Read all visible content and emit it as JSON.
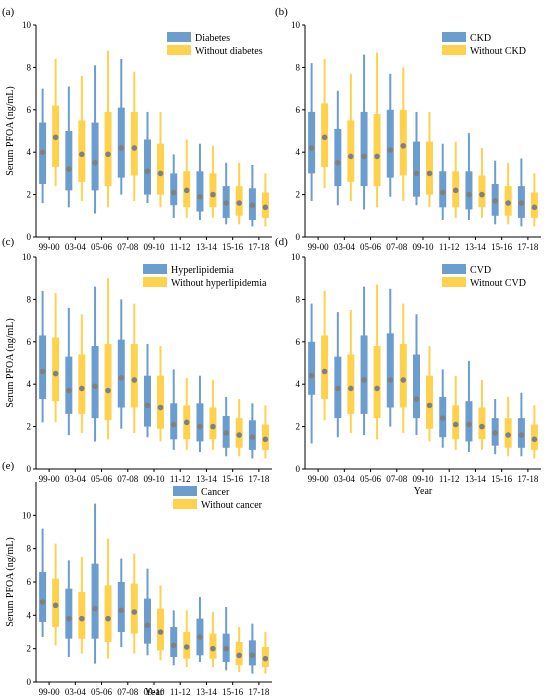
{
  "colors": {
    "group_a": "#6B9ECF",
    "group_b": "#FFD24D",
    "median": "#808080",
    "axis": "#000000"
  },
  "chart_data": [
    {
      "type": "box",
      "panel_label": "(a)",
      "ylabel": "Serum PFOA (ng/mL)",
      "xlabel": "",
      "ylim": [
        0,
        10
      ],
      "yticks": [
        0,
        2,
        4,
        6,
        8,
        10
      ],
      "categories": [
        "99-00",
        "03-04",
        "05-06",
        "07-08",
        "09-10",
        "11-12",
        "13-14",
        "15-16",
        "17-18"
      ],
      "legend_position": "top-right",
      "series": [
        {
          "name": "Diabetes",
          "color": "group_a",
          "boxes": [
            {
              "whislo": 1.6,
              "q1": 2.5,
              "med": 4.0,
              "q3": 5.4,
              "whishi": 7.0
            },
            {
              "whislo": 1.4,
              "q1": 2.2,
              "med": 3.2,
              "q3": 5.0,
              "whishi": 7.1
            },
            {
              "whislo": 1.1,
              "q1": 2.2,
              "med": 3.5,
              "q3": 5.4,
              "whishi": 8.1
            },
            {
              "whislo": 2.0,
              "q1": 2.8,
              "med": 4.2,
              "q3": 6.1,
              "whishi": 8.4
            },
            {
              "whislo": 1.6,
              "q1": 2.0,
              "med": 3.1,
              "q3": 4.6,
              "whishi": 5.9
            },
            {
              "whislo": 0.9,
              "q1": 1.5,
              "med": 2.1,
              "q3": 3.0,
              "whishi": 3.9
            },
            {
              "whislo": 0.8,
              "q1": 1.2,
              "med": 1.9,
              "q3": 3.1,
              "whishi": 4.4
            },
            {
              "whislo": 0.6,
              "q1": 0.9,
              "med": 1.6,
              "q3": 2.4,
              "whishi": 3.5
            },
            {
              "whislo": 0.5,
              "q1": 0.8,
              "med": 1.5,
              "q3": 2.3,
              "whishi": 3.4
            }
          ]
        },
        {
          "name": "Without diabetes",
          "color": "group_b",
          "boxes": [
            {
              "whislo": 2.4,
              "q1": 3.3,
              "med": 4.7,
              "q3": 6.2,
              "whishi": 8.4
            },
            {
              "whislo": 1.7,
              "q1": 2.6,
              "med": 3.9,
              "q3": 5.5,
              "whishi": 7.6
            },
            {
              "whislo": 1.4,
              "q1": 2.4,
              "med": 3.9,
              "q3": 5.9,
              "whishi": 8.8
            },
            {
              "whislo": 1.7,
              "q1": 2.9,
              "med": 4.2,
              "q3": 5.9,
              "whishi": 7.8
            },
            {
              "whislo": 1.4,
              "q1": 2.0,
              "med": 3.0,
              "q3": 4.4,
              "whishi": 5.9
            },
            {
              "whislo": 0.9,
              "q1": 1.4,
              "med": 2.2,
              "q3": 3.1,
              "whishi": 4.6
            },
            {
              "whislo": 0.9,
              "q1": 1.4,
              "med": 2.0,
              "q3": 3.0,
              "whishi": 4.3
            },
            {
              "whislo": 0.6,
              "q1": 1.0,
              "med": 1.6,
              "q3": 2.4,
              "whishi": 3.5
            },
            {
              "whislo": 0.5,
              "q1": 0.9,
              "med": 1.4,
              "q3": 2.1,
              "whishi": 3.0
            }
          ]
        }
      ]
    },
    {
      "type": "box",
      "panel_label": "(b)",
      "ylabel": "",
      "xlabel": "",
      "ylim": [
        0,
        10
      ],
      "yticks": [
        0,
        2,
        4,
        6,
        8,
        10
      ],
      "categories": [
        "99-00",
        "03-04",
        "05-06",
        "07-08",
        "09-10",
        "11-12",
        "13-14",
        "15-16",
        "17-18"
      ],
      "legend_position": "top-right",
      "series": [
        {
          "name": "CKD",
          "color": "group_a",
          "boxes": [
            {
              "whislo": 1.7,
              "q1": 3.0,
              "med": 4.2,
              "q3": 5.9,
              "whishi": 8.2
            },
            {
              "whislo": 1.5,
              "q1": 2.4,
              "med": 3.5,
              "q3": 5.1,
              "whishi": 6.9
            },
            {
              "whislo": 1.3,
              "q1": 2.4,
              "med": 3.8,
              "q3": 5.9,
              "whishi": 8.6
            },
            {
              "whislo": 1.9,
              "q1": 2.8,
              "med": 4.1,
              "q3": 6.0,
              "whishi": 7.7
            },
            {
              "whislo": 1.5,
              "q1": 1.9,
              "med": 3.0,
              "q3": 4.5,
              "whishi": 5.9
            },
            {
              "whislo": 0.8,
              "q1": 1.4,
              "med": 2.1,
              "q3": 3.1,
              "whishi": 4.4
            },
            {
              "whislo": 0.8,
              "q1": 1.3,
              "med": 2.0,
              "q3": 3.1,
              "whishi": 4.9
            },
            {
              "whislo": 0.6,
              "q1": 1.0,
              "med": 1.7,
              "q3": 2.5,
              "whishi": 3.6
            },
            {
              "whislo": 0.5,
              "q1": 0.9,
              "med": 1.6,
              "q3": 2.4,
              "whishi": 3.7
            }
          ]
        },
        {
          "name": "Without CKD",
          "color": "group_b",
          "boxes": [
            {
              "whislo": 2.3,
              "q1": 3.3,
              "med": 4.7,
              "q3": 6.3,
              "whishi": 8.4
            },
            {
              "whislo": 1.7,
              "q1": 2.6,
              "med": 3.8,
              "q3": 5.5,
              "whishi": 7.7
            },
            {
              "whislo": 1.4,
              "q1": 2.4,
              "med": 3.8,
              "q3": 5.8,
              "whishi": 8.7
            },
            {
              "whislo": 1.7,
              "q1": 2.9,
              "med": 4.3,
              "q3": 6.0,
              "whishi": 8.0
            },
            {
              "whislo": 1.4,
              "q1": 2.0,
              "med": 3.0,
              "q3": 4.5,
              "whishi": 5.9
            },
            {
              "whislo": 0.9,
              "q1": 1.4,
              "med": 2.2,
              "q3": 3.1,
              "whishi": 4.5
            },
            {
              "whislo": 0.9,
              "q1": 1.4,
              "med": 2.0,
              "q3": 2.9,
              "whishi": 4.2
            },
            {
              "whislo": 0.6,
              "q1": 1.0,
              "med": 1.6,
              "q3": 2.4,
              "whishi": 3.5
            },
            {
              "whislo": 0.5,
              "q1": 0.9,
              "med": 1.4,
              "q3": 2.1,
              "whishi": 3.0
            }
          ]
        }
      ]
    },
    {
      "type": "box",
      "panel_label": "(c)",
      "ylabel": "Serum PFOA (ng/mL)",
      "xlabel": "",
      "ylim": [
        0,
        10
      ],
      "yticks": [
        0,
        2,
        4,
        6,
        8,
        10
      ],
      "categories": [
        "99-00",
        "03-04",
        "05-06",
        "07-08",
        "09-10",
        "11-12",
        "13-14",
        "15-16",
        "17-18"
      ],
      "legend_position": "top-right",
      "series": [
        {
          "name": "Hyperlipidemia",
          "color": "group_a",
          "boxes": [
            {
              "whislo": 2.2,
              "q1": 3.3,
              "med": 4.6,
              "q3": 6.3,
              "whishi": 8.4
            },
            {
              "whislo": 1.6,
              "q1": 2.6,
              "med": 3.7,
              "q3": 5.3,
              "whishi": 7.6
            },
            {
              "whislo": 1.3,
              "q1": 2.4,
              "med": 3.9,
              "q3": 5.8,
              "whishi": 8.6
            },
            {
              "whislo": 1.9,
              "q1": 2.9,
              "med": 4.3,
              "q3": 6.1,
              "whishi": 8.0
            },
            {
              "whislo": 1.5,
              "q1": 2.0,
              "med": 3.0,
              "q3": 4.4,
              "whishi": 5.9
            },
            {
              "whislo": 0.9,
              "q1": 1.4,
              "med": 2.1,
              "q3": 3.1,
              "whishi": 4.7
            },
            {
              "whislo": 0.8,
              "q1": 1.3,
              "med": 2.0,
              "q3": 3.1,
              "whishi": 4.4
            },
            {
              "whislo": 0.6,
              "q1": 1.0,
              "med": 1.7,
              "q3": 2.5,
              "whishi": 3.4
            },
            {
              "whislo": 0.5,
              "q1": 0.9,
              "med": 1.5,
              "q3": 2.3,
              "whishi": 3.1
            }
          ]
        },
        {
          "name": "Without hyperlipidemia",
          "color": "group_b",
          "boxes": [
            {
              "whislo": 2.2,
              "q1": 3.2,
              "med": 4.5,
              "q3": 6.2,
              "whishi": 8.3
            },
            {
              "whislo": 1.7,
              "q1": 2.6,
              "med": 3.8,
              "q3": 5.4,
              "whishi": 7.3
            },
            {
              "whislo": 1.4,
              "q1": 2.3,
              "med": 3.7,
              "q3": 5.9,
              "whishi": 9.0
            },
            {
              "whislo": 1.7,
              "q1": 2.9,
              "med": 4.2,
              "q3": 5.9,
              "whishi": 7.8
            },
            {
              "whislo": 1.3,
              "q1": 1.9,
              "med": 2.9,
              "q3": 4.4,
              "whishi": 5.8
            },
            {
              "whislo": 0.9,
              "q1": 1.4,
              "med": 2.2,
              "q3": 3.0,
              "whishi": 4.3
            },
            {
              "whislo": 0.9,
              "q1": 1.4,
              "med": 2.0,
              "q3": 2.9,
              "whishi": 4.2
            },
            {
              "whislo": 0.6,
              "q1": 1.0,
              "med": 1.6,
              "q3": 2.4,
              "whishi": 3.3
            },
            {
              "whislo": 0.5,
              "q1": 0.9,
              "med": 1.4,
              "q3": 2.1,
              "whishi": 3.0
            }
          ]
        }
      ]
    },
    {
      "type": "box",
      "panel_label": "(d)",
      "ylabel": "",
      "xlabel": "Year",
      "ylim": [
        0,
        10
      ],
      "yticks": [
        0,
        2,
        4,
        6,
        8,
        10
      ],
      "categories": [
        "99-00",
        "03-04",
        "05-06",
        "07-08",
        "09-10",
        "11-12",
        "13-14",
        "15-16",
        "17-18"
      ],
      "legend_position": "top-right",
      "series": [
        {
          "name": "CVD",
          "color": "group_a",
          "boxes": [
            {
              "whislo": 1.2,
              "q1": 3.5,
              "med": 4.4,
              "q3": 6.0,
              "whishi": 7.8
            },
            {
              "whislo": 1.5,
              "q1": 2.4,
              "med": 3.8,
              "q3": 5.3,
              "whishi": 7.4
            },
            {
              "whislo": 1.6,
              "q1": 2.6,
              "med": 4.2,
              "q3": 6.3,
              "whishi": 8.6
            },
            {
              "whislo": 2.0,
              "q1": 2.9,
              "med": 4.2,
              "q3": 6.4,
              "whishi": 8.5
            },
            {
              "whislo": 1.6,
              "q1": 2.4,
              "med": 3.3,
              "q3": 5.4,
              "whishi": 7.3
            },
            {
              "whislo": 1.0,
              "q1": 1.5,
              "med": 2.4,
              "q3": 3.4,
              "whishi": 4.7
            },
            {
              "whislo": 0.8,
              "q1": 1.3,
              "med": 2.1,
              "q3": 3.2,
              "whishi": 5.1
            },
            {
              "whislo": 0.7,
              "q1": 1.1,
              "med": 1.7,
              "q3": 2.4,
              "whishi": 3.3
            },
            {
              "whislo": 0.6,
              "q1": 1.0,
              "med": 1.6,
              "q3": 2.4,
              "whishi": 3.6
            }
          ]
        },
        {
          "name": "Witnout CVD",
          "color": "group_b",
          "boxes": [
            {
              "whislo": 2.3,
              "q1": 3.3,
              "med": 4.6,
              "q3": 6.3,
              "whishi": 8.4
            },
            {
              "whislo": 1.7,
              "q1": 2.6,
              "med": 3.8,
              "q3": 5.4,
              "whishi": 7.5
            },
            {
              "whislo": 1.4,
              "q1": 2.4,
              "med": 3.8,
              "q3": 5.8,
              "whishi": 8.7
            },
            {
              "whislo": 1.7,
              "q1": 2.9,
              "med": 4.2,
              "q3": 5.9,
              "whishi": 7.8
            },
            {
              "whislo": 1.3,
              "q1": 1.9,
              "med": 3.0,
              "q3": 4.4,
              "whishi": 5.8
            },
            {
              "whislo": 0.9,
              "q1": 1.4,
              "med": 2.1,
              "q3": 3.0,
              "whishi": 4.4
            },
            {
              "whislo": 0.9,
              "q1": 1.4,
              "med": 2.0,
              "q3": 2.9,
              "whishi": 4.2
            },
            {
              "whislo": 0.6,
              "q1": 1.0,
              "med": 1.6,
              "q3": 2.4,
              "whishi": 3.4
            },
            {
              "whislo": 0.5,
              "q1": 0.9,
              "med": 1.4,
              "q3": 2.1,
              "whishi": 3.0
            }
          ]
        }
      ]
    },
    {
      "type": "box",
      "panel_label": "(e)",
      "ylabel": "Serum PFOA (ng/mL)",
      "xlabel": "Year",
      "ylim": [
        0,
        12
      ],
      "yticks": [
        0,
        2,
        4,
        6,
        8,
        10
      ],
      "categories": [
        "99-00",
        "03-04",
        "05-06",
        "07-08",
        "09-10",
        "11-12",
        "13-14",
        "15-16",
        "17-18"
      ],
      "legend_position": "top-right",
      "series": [
        {
          "name": "Cancer",
          "color": "group_a",
          "boxes": [
            {
              "whislo": 2.7,
              "q1": 3.6,
              "med": 4.8,
              "q3": 6.6,
              "whishi": 9.2
            },
            {
              "whislo": 1.5,
              "q1": 2.6,
              "med": 3.8,
              "q3": 5.6,
              "whishi": 7.3
            },
            {
              "whislo": 1.1,
              "q1": 2.6,
              "med": 4.4,
              "q3": 7.1,
              "whishi": 10.7
            },
            {
              "whislo": 2.1,
              "q1": 3.0,
              "med": 4.3,
              "q3": 6.0,
              "whishi": 7.4
            },
            {
              "whislo": 1.6,
              "q1": 2.3,
              "med": 3.4,
              "q3": 5.0,
              "whishi": 6.8
            },
            {
              "whislo": 1.0,
              "q1": 1.5,
              "med": 2.2,
              "q3": 3.3,
              "whishi": 4.3
            },
            {
              "whislo": 1.2,
              "q1": 1.6,
              "med": 2.7,
              "q3": 3.8,
              "whishi": 5.1
            },
            {
              "whislo": 0.7,
              "q1": 1.2,
              "med": 2.0,
              "q3": 2.9,
              "whishi": 4.5
            },
            {
              "whislo": 0.5,
              "q1": 1.0,
              "med": 1.6,
              "q3": 2.5,
              "whishi": 3.5
            }
          ]
        },
        {
          "name": "Without cancer",
          "color": "group_b",
          "boxes": [
            {
              "whislo": 2.2,
              "q1": 3.3,
              "med": 4.6,
              "q3": 6.2,
              "whishi": 8.3
            },
            {
              "whislo": 1.7,
              "q1": 2.6,
              "med": 3.8,
              "q3": 5.4,
              "whishi": 7.5
            },
            {
              "whislo": 1.4,
              "q1": 2.4,
              "med": 3.8,
              "q3": 5.8,
              "whishi": 8.6
            },
            {
              "whislo": 1.7,
              "q1": 2.9,
              "med": 4.2,
              "q3": 5.9,
              "whishi": 7.7
            },
            {
              "whislo": 1.3,
              "q1": 1.9,
              "med": 3.0,
              "q3": 4.4,
              "whishi": 5.8
            },
            {
              "whislo": 0.9,
              "q1": 1.4,
              "med": 2.1,
              "q3": 3.0,
              "whishi": 4.3
            },
            {
              "whislo": 0.9,
              "q1": 1.4,
              "med": 2.0,
              "q3": 2.9,
              "whishi": 4.2
            },
            {
              "whislo": 0.6,
              "q1": 1.0,
              "med": 1.6,
              "q3": 2.4,
              "whishi": 3.3
            },
            {
              "whislo": 0.5,
              "q1": 0.9,
              "med": 1.4,
              "q3": 2.1,
              "whishi": 3.0
            }
          ]
        }
      ]
    }
  ]
}
